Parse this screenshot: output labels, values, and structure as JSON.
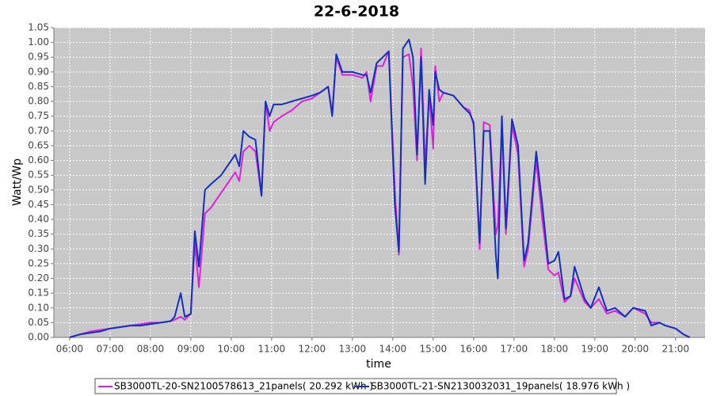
{
  "chart_data": {
    "type": "line",
    "title": "22-6-2018",
    "x_label": "time",
    "y_label": "Watt/Wp",
    "x": [
      6.0,
      6.25,
      6.5,
      6.75,
      7.0,
      7.25,
      7.5,
      7.75,
      8.0,
      8.25,
      8.5,
      8.6,
      8.75,
      8.85,
      9.0,
      9.1,
      9.2,
      9.35,
      9.5,
      9.75,
      9.95,
      10.1,
      10.2,
      10.3,
      10.45,
      10.6,
      10.75,
      10.85,
      10.95,
      11.05,
      11.25,
      11.5,
      11.75,
      12.0,
      12.2,
      12.4,
      12.5,
      12.6,
      12.75,
      13.0,
      13.25,
      13.35,
      13.45,
      13.6,
      13.75,
      13.9,
      14.05,
      14.15,
      14.25,
      14.4,
      14.5,
      14.6,
      14.7,
      14.8,
      14.9,
      15.0,
      15.05,
      15.15,
      15.25,
      15.5,
      15.75,
      15.9,
      16.0,
      16.15,
      16.25,
      16.4,
      16.55,
      16.6,
      16.7,
      16.8,
      16.95,
      17.1,
      17.25,
      17.35,
      17.55,
      17.7,
      17.85,
      18.0,
      18.1,
      18.25,
      18.4,
      18.5,
      18.75,
      18.9,
      19.1,
      19.3,
      19.5,
      19.75,
      19.95,
      20.25,
      20.4,
      20.6,
      20.75,
      21.0,
      21.2,
      21.35
    ],
    "series": [
      {
        "name": "SB3000TL-20-SN2100578613_21panels( 20.292 kWh )",
        "color": "#e020e0",
        "values": [
          0.0,
          0.01,
          0.02,
          0.025,
          0.03,
          0.035,
          0.04,
          0.045,
          0.05,
          0.05,
          0.055,
          0.06,
          0.07,
          0.06,
          0.08,
          0.32,
          0.17,
          0.42,
          0.44,
          0.49,
          0.53,
          0.56,
          0.53,
          0.63,
          0.65,
          0.63,
          0.48,
          0.8,
          0.7,
          0.73,
          0.75,
          0.77,
          0.8,
          0.81,
          0.83,
          0.85,
          0.76,
          0.95,
          0.89,
          0.89,
          0.88,
          0.9,
          0.8,
          0.92,
          0.92,
          0.97,
          0.5,
          0.28,
          0.95,
          0.96,
          0.85,
          0.6,
          0.98,
          0.58,
          0.82,
          0.64,
          0.92,
          0.8,
          0.83,
          0.82,
          0.78,
          0.77,
          0.72,
          0.3,
          0.73,
          0.72,
          0.35,
          0.38,
          0.72,
          0.35,
          0.72,
          0.62,
          0.24,
          0.3,
          0.6,
          0.4,
          0.23,
          0.21,
          0.22,
          0.12,
          0.14,
          0.2,
          0.12,
          0.1,
          0.13,
          0.08,
          0.09,
          0.07,
          0.1,
          0.08,
          0.05,
          0.05,
          0.04,
          0.03,
          0.01,
          0.0
        ]
      },
      {
        "name": "SB3000TL-21-SN2130032031_19panels( 18.976 kWh )",
        "color": "#1030c0",
        "values": [
          0.0,
          0.01,
          0.015,
          0.02,
          0.03,
          0.035,
          0.04,
          0.04,
          0.045,
          0.05,
          0.055,
          0.07,
          0.15,
          0.07,
          0.08,
          0.36,
          0.24,
          0.5,
          0.52,
          0.55,
          0.59,
          0.62,
          0.58,
          0.7,
          0.68,
          0.67,
          0.48,
          0.8,
          0.75,
          0.79,
          0.79,
          0.8,
          0.81,
          0.82,
          0.83,
          0.85,
          0.75,
          0.96,
          0.9,
          0.9,
          0.89,
          0.89,
          0.83,
          0.93,
          0.95,
          0.97,
          0.45,
          0.29,
          0.98,
          1.01,
          0.95,
          0.62,
          0.95,
          0.52,
          0.84,
          0.72,
          0.9,
          0.84,
          0.83,
          0.82,
          0.78,
          0.76,
          0.73,
          0.32,
          0.7,
          0.7,
          0.28,
          0.2,
          0.75,
          0.37,
          0.74,
          0.65,
          0.26,
          0.32,
          0.63,
          0.45,
          0.25,
          0.26,
          0.29,
          0.13,
          0.14,
          0.24,
          0.13,
          0.1,
          0.17,
          0.09,
          0.1,
          0.07,
          0.1,
          0.09,
          0.04,
          0.05,
          0.04,
          0.03,
          0.01,
          0.0
        ]
      }
    ],
    "xlim": [
      5.61,
      21.73
    ],
    "xticks": [
      {
        "value": 6,
        "label": "06:00"
      },
      {
        "value": 7,
        "label": "07:00"
      },
      {
        "value": 8,
        "label": "08:00"
      },
      {
        "value": 9,
        "label": "09:00"
      },
      {
        "value": 10,
        "label": "10:00"
      },
      {
        "value": 11,
        "label": "11:00"
      },
      {
        "value": 12,
        "label": "12:00"
      },
      {
        "value": 13,
        "label": "13:00"
      },
      {
        "value": 14,
        "label": "14:00"
      },
      {
        "value": 15,
        "label": "15:00"
      },
      {
        "value": 16,
        "label": "16:00"
      },
      {
        "value": 17,
        "label": "17:00"
      },
      {
        "value": 18,
        "label": "18:00"
      },
      {
        "value": 19,
        "label": "19:00"
      },
      {
        "value": 20,
        "label": "20:00"
      },
      {
        "value": 21,
        "label": "21:00"
      }
    ],
    "ylim": [
      0,
      1.05
    ],
    "yticks": [
      {
        "value": 0,
        "label": "0.00"
      },
      0.05,
      {
        "value": 0.1,
        "label": "0.10"
      },
      0.15,
      {
        "value": 0.2,
        "label": "0.20"
      },
      0.25,
      {
        "value": 0.3,
        "label": "0.30"
      },
      0.35,
      {
        "value": 0.4,
        "label": "0.40"
      },
      0.45,
      {
        "value": 0.5,
        "label": "0.50"
      },
      0.55,
      {
        "value": 0.6,
        "label": "0.60"
      },
      0.65,
      {
        "value": 0.7,
        "label": "0.70"
      },
      0.75,
      {
        "value": 0.8,
        "label": "0.80"
      },
      0.85,
      {
        "value": 0.9,
        "label": "0.90"
      },
      0.95,
      {
        "value": 1,
        "label": "1.00"
      },
      1.05
    ],
    "grid": true
  }
}
